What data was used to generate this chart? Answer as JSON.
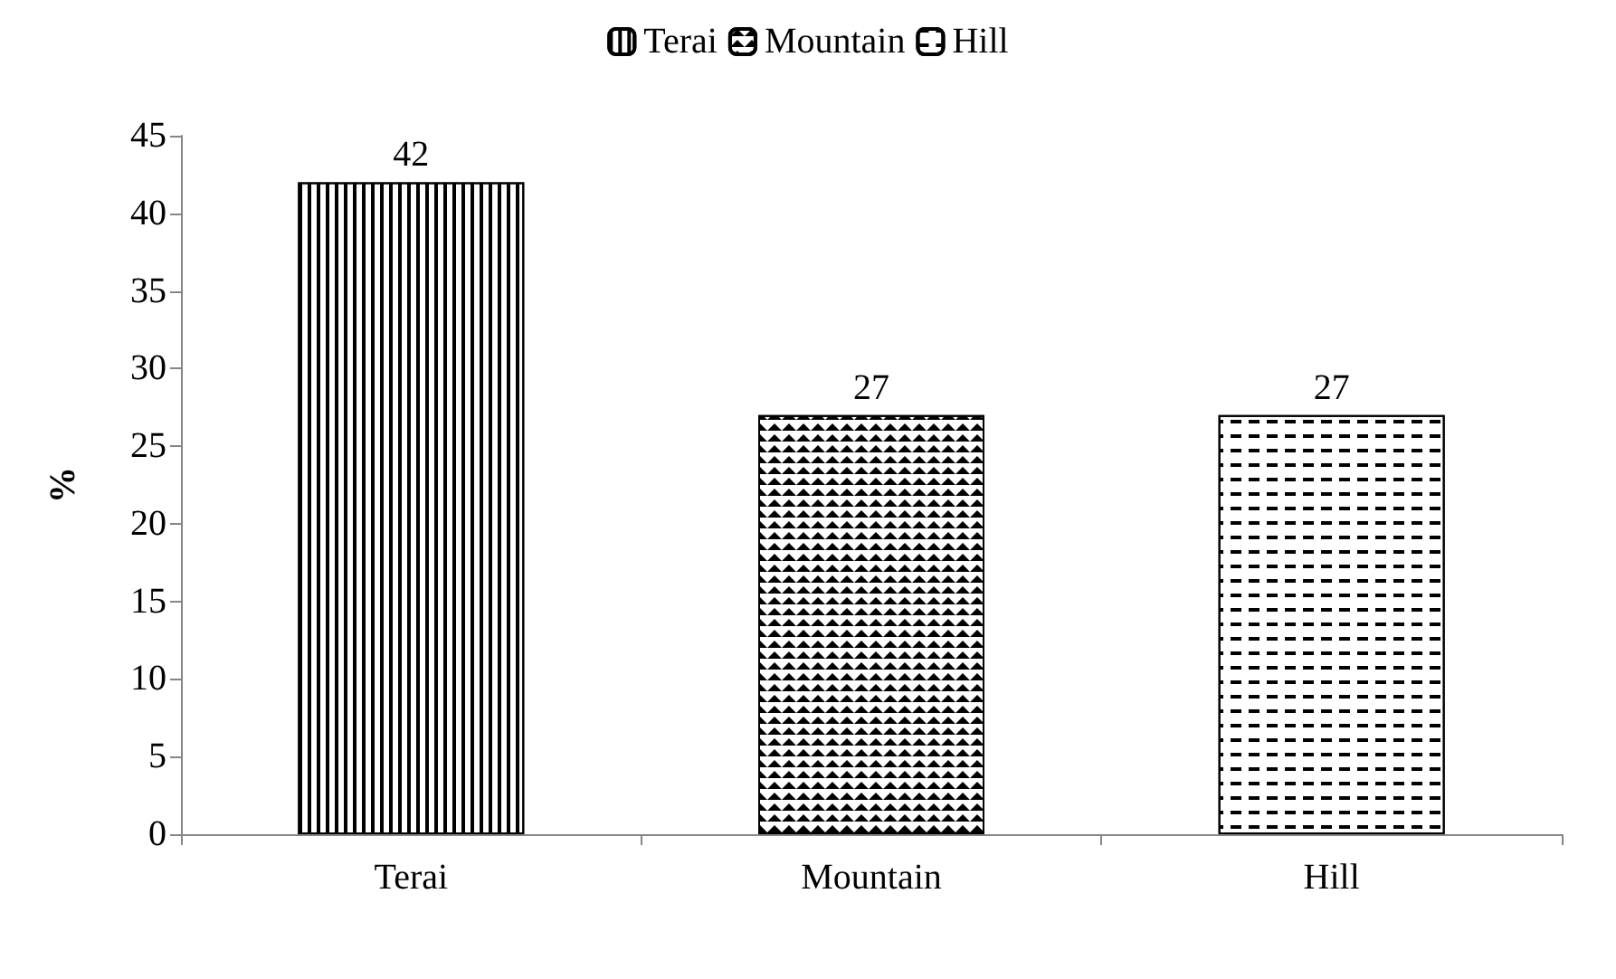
{
  "chart_data": {
    "type": "bar",
    "ylabel": "%",
    "categories": [
      "Terai",
      "Mountain",
      "Hill"
    ],
    "series": [
      {
        "name": "Terai",
        "color": "#000000",
        "values": [
          42,
          null,
          null
        ]
      },
      {
        "name": "Mountain",
        "color": "#000000",
        "values": [
          null,
          27,
          null
        ]
      },
      {
        "name": "Hill",
        "color": "#000000",
        "values": [
          null,
          null,
          27
        ]
      }
    ],
    "ylim": [
      0,
      45
    ],
    "yticks": [
      0,
      5,
      10,
      15,
      20,
      25,
      30,
      35,
      40,
      45
    ],
    "grid": false,
    "legend": "top",
    "data_labels": true
  }
}
